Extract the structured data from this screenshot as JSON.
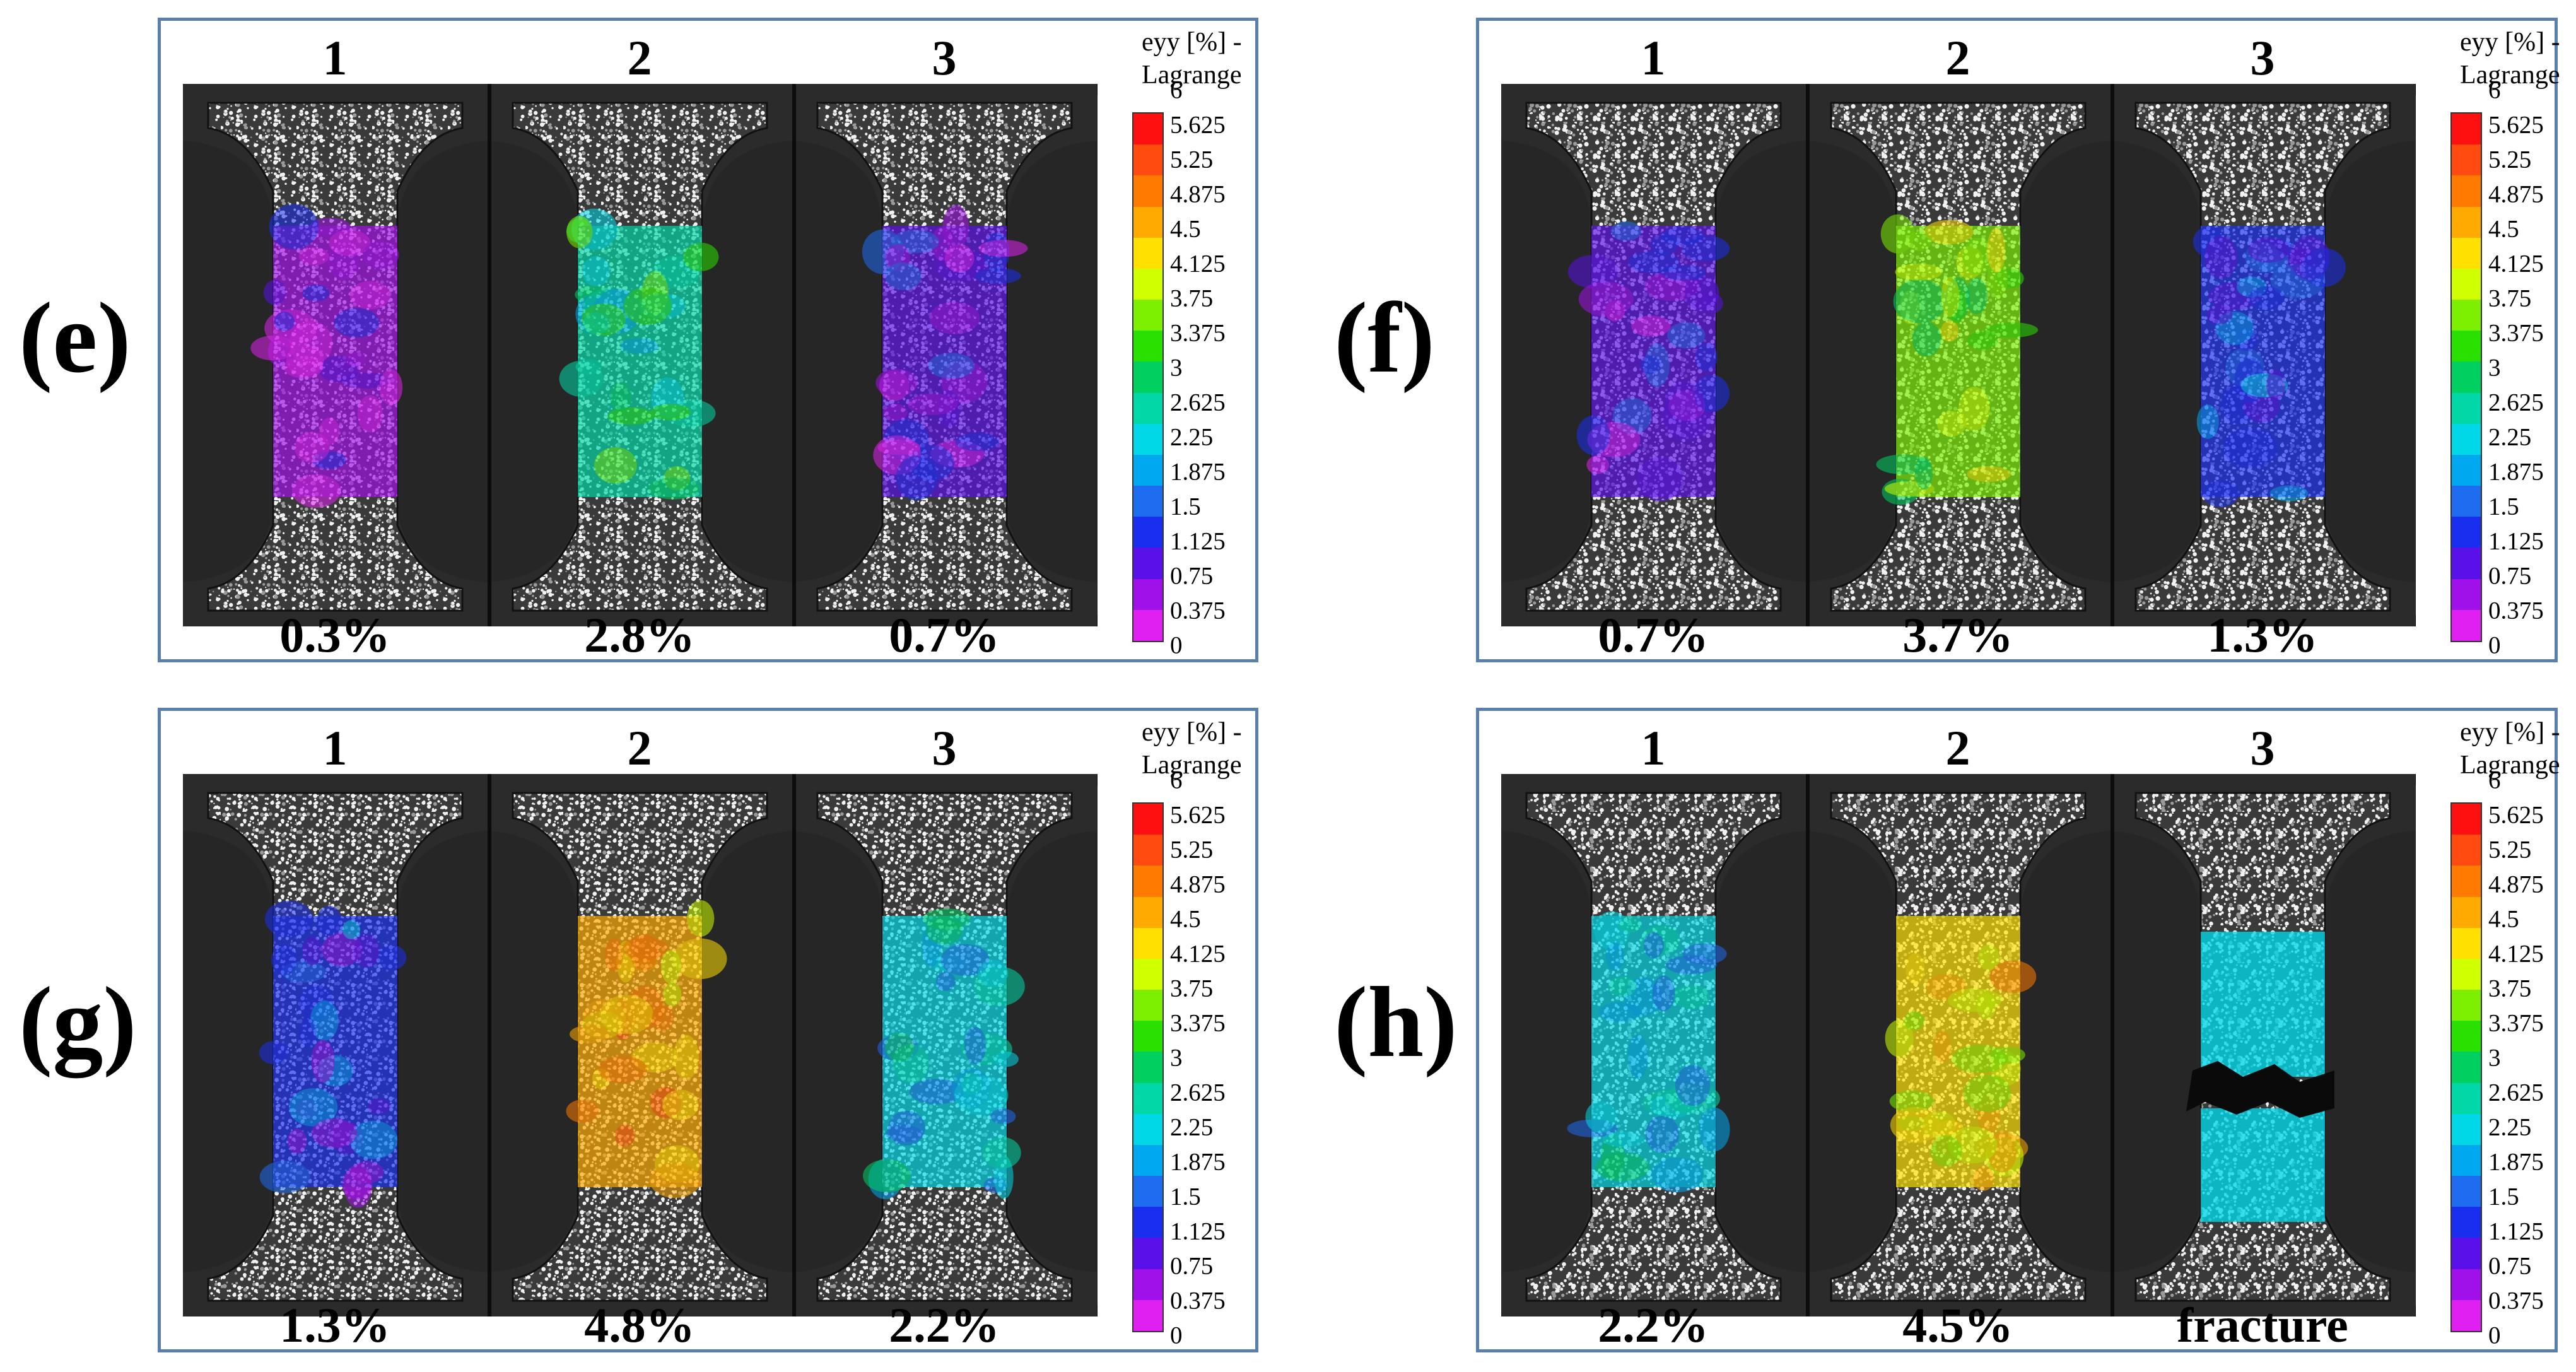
{
  "colorbar": {
    "title_line1": "eyy [%] -",
    "title_line2": "Lagrange",
    "ticks": [
      "6",
      "5.625",
      "5.25",
      "4.875",
      "4.5",
      "4.125",
      "3.75",
      "3.375",
      "3",
      "2.625",
      "2.25",
      "1.875",
      "1.5",
      "1.125",
      "0.75",
      "0.375",
      "0"
    ],
    "colors_top_to_bottom": [
      "#ff1010",
      "#ff4a10",
      "#ff7a00",
      "#ffaa00",
      "#ffe000",
      "#cfff00",
      "#7cf000",
      "#2ae000",
      "#00d060",
      "#00d8a8",
      "#00d8e8",
      "#00a8f0",
      "#1e6cf0",
      "#1a2ef0",
      "#5a10e8",
      "#a010e8",
      "#e020f0"
    ]
  },
  "panels": [
    {
      "letter": "(e)",
      "specimen_labels": [
        "1",
        "2",
        "3"
      ],
      "strain_labels": [
        "0.3%",
        "2.8%",
        "0.7%"
      ],
      "strain_values_percent": [
        0.3,
        2.8,
        0.7
      ],
      "fracture": [
        false,
        false,
        false
      ]
    },
    {
      "letter": "(f)",
      "specimen_labels": [
        "1",
        "2",
        "3"
      ],
      "strain_labels": [
        "0.7%",
        "3.7%",
        "1.3%"
      ],
      "strain_values_percent": [
        0.7,
        3.7,
        1.3
      ],
      "fracture": [
        false,
        false,
        false
      ]
    },
    {
      "letter": "(g)",
      "specimen_labels": [
        "1",
        "2",
        "3"
      ],
      "strain_labels": [
        "1.3%",
        "4.8%",
        "2.2%"
      ],
      "strain_values_percent": [
        1.3,
        4.8,
        2.2
      ],
      "fracture": [
        false,
        false,
        false
      ]
    },
    {
      "letter": "(h)",
      "specimen_labels": [
        "1",
        "2",
        "3"
      ],
      "strain_labels": [
        "2.2%",
        "4.5%",
        "fracture"
      ],
      "strain_values_percent": [
        2.2,
        4.5,
        null
      ],
      "fracture": [
        false,
        false,
        true
      ]
    }
  ]
}
